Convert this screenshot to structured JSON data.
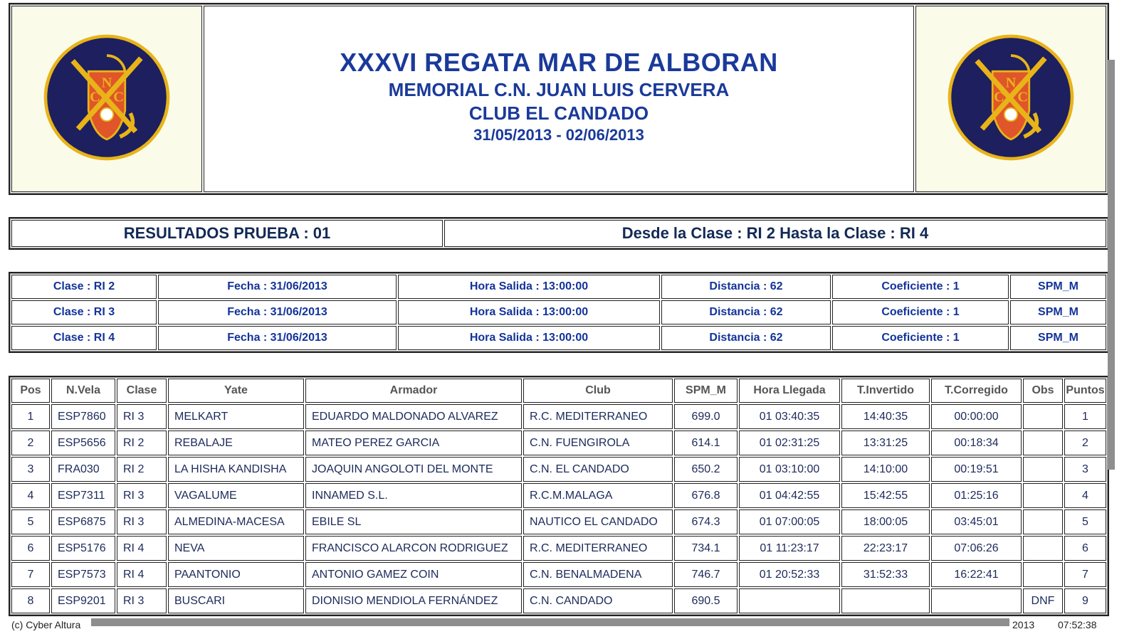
{
  "header": {
    "title": "XXXVI REGATA MAR DE ALBORAN",
    "subtitle": "MEMORIAL C.N. JUAN LUIS CERVERA",
    "club": "CLUB EL CANDADO",
    "dates": "31/05/2013 - 02/06/2013",
    "logo_text": "CNC"
  },
  "results_header": {
    "left": "RESULTADOS PRUEBA : 01",
    "right": "Desde la Clase : RI 2 Hasta la Clase : RI 4"
  },
  "classes": [
    {
      "clase": "Clase : RI 2",
      "fecha": "Fecha : 31/06/2013",
      "hora": "Hora Salida : 13:00:00",
      "distancia": "Distancia : 62",
      "coef": "Coeficiente : 1",
      "sistema": "SPM_M"
    },
    {
      "clase": "Clase : RI 3",
      "fecha": "Fecha : 31/06/2013",
      "hora": "Hora Salida : 13:00:00",
      "distancia": "Distancia : 62",
      "coef": "Coeficiente : 1",
      "sistema": "SPM_M"
    },
    {
      "clase": "Clase : RI 4",
      "fecha": "Fecha : 31/06/2013",
      "hora": "Hora Salida : 13:00:00",
      "distancia": "Distancia : 62",
      "coef": "Coeficiente : 1",
      "sistema": "SPM_M"
    }
  ],
  "columns": [
    "Pos",
    "N.Vela",
    "Clase",
    "Yate",
    "Armador",
    "Club",
    "SPM_M",
    "Hora Llegada",
    "T.Invertido",
    "T.Corregido",
    "Obs",
    "Puntos"
  ],
  "rows": [
    [
      "1",
      "ESP7860",
      "RI 3",
      "MELKART",
      "EDUARDO MALDONADO ALVAREZ",
      "R.C. MEDITERRANEO",
      "699.0",
      "01 03:40:35",
      "14:40:35",
      "00:00:00",
      "",
      "1"
    ],
    [
      "2",
      "ESP5656",
      "RI 2",
      "REBALAJE",
      "MATEO PEREZ GARCIA",
      "C.N. FUENGIROLA",
      "614.1",
      "01 02:31:25",
      "13:31:25",
      "00:18:34",
      "",
      "2"
    ],
    [
      "3",
      "FRA030",
      "RI 2",
      "LA HISHA KANDISHA",
      "JOAQUIN ANGOLOTI DEL MONTE",
      "C.N. EL CANDADO",
      "650.2",
      "01 03:10:00",
      "14:10:00",
      "00:19:51",
      "",
      "3"
    ],
    [
      "4",
      "ESP7311",
      "RI 3",
      "VAGALUME",
      "INNAMED S.L.",
      "R.C.M.MALAGA",
      "676.8",
      "01 04:42:55",
      "15:42:55",
      "01:25:16",
      "",
      "4"
    ],
    [
      "5",
      "ESP6875",
      "RI 3",
      "ALMEDINA-MACESA",
      "EBILE SL",
      "NAUTICO EL CANDADO",
      "674.3",
      "01 07:00:05",
      "18:00:05",
      "03:45:01",
      "",
      "5"
    ],
    [
      "6",
      "ESP5176",
      "RI 4",
      "NEVA",
      "FRANCISCO ALARCON RODRIGUEZ",
      "R.C. MEDITERRANEO",
      "734.1",
      "01 11:23:17",
      "22:23:17",
      "07:06:26",
      "",
      "6"
    ],
    [
      "7",
      "ESP7573",
      "RI 4",
      "PAANTONIO",
      "ANTONIO GAMEZ COIN",
      "C.N. BENALMADENA",
      "746.7",
      "01 20:52:33",
      "31:52:33",
      "16:22:41",
      "",
      "7"
    ],
    [
      "8",
      "ESP9201",
      "RI 3",
      "BUSCARI",
      "DIONISIO MENDIOLA FERNÁNDEZ",
      "C.N. CANDADO",
      "690.5",
      "",
      "",
      "",
      "DNF",
      "9"
    ]
  ],
  "footer": {
    "left": "(c) Cyber Altura",
    "right_date": "2013",
    "right_time": "07:52:38"
  },
  "colors": {
    "title": "#1a3a9a",
    "text": "#1c2a5a",
    "header_text": "#555555",
    "logo_bg": "#fbfbea",
    "logo_navy": "#1d1f5e",
    "logo_gold": "#e8b418",
    "logo_red": "#e0552a"
  }
}
